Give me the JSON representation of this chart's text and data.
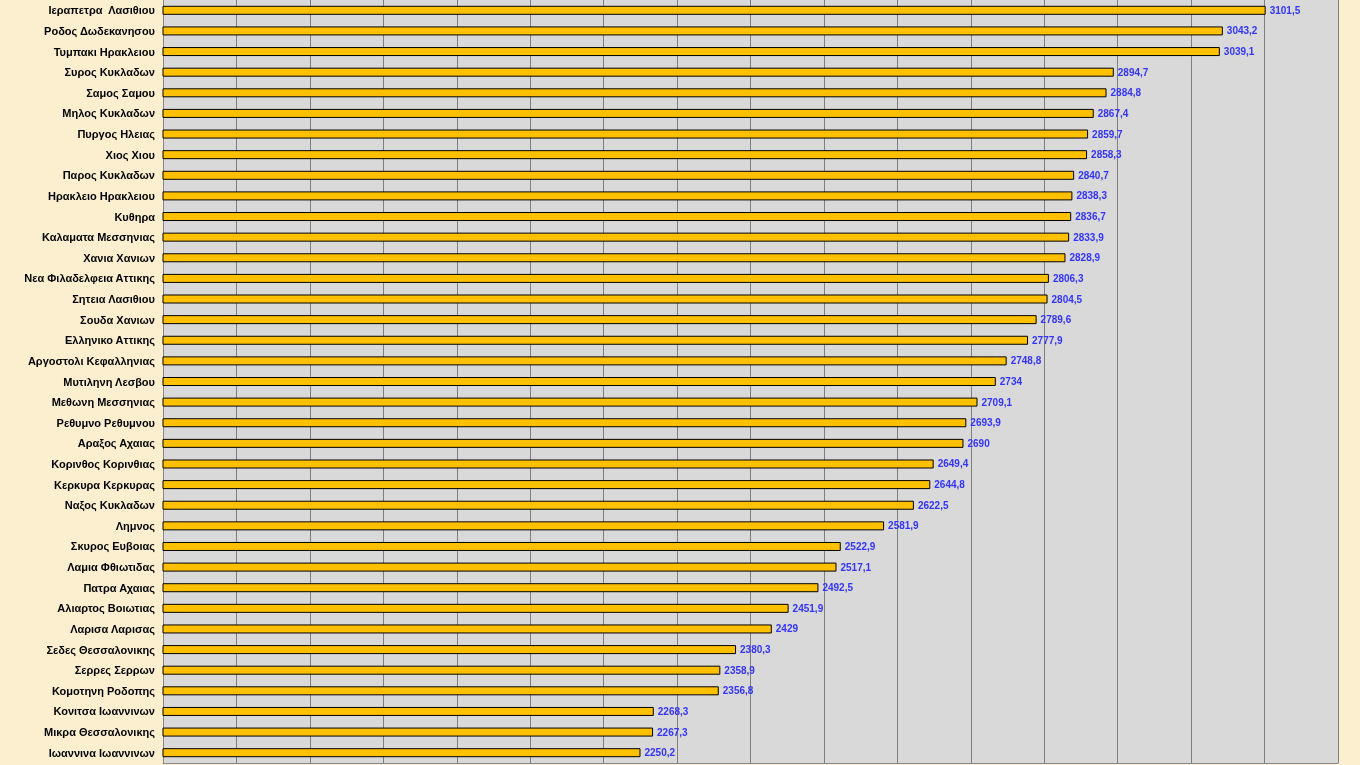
{
  "chart_data": {
    "type": "bar",
    "orientation": "horizontal",
    "categories": [
      "Ιεραπετρα  Λασιθιου",
      "Ροδος Δωδεκανησου",
      "Τυμπακι Ηρακλειου",
      "Συρος Κυκλαδων",
      "Σαμος Σαμου",
      "Μηλος Κυκλαδων",
      "Πυργος Ηλειας",
      "Χιος Χιου",
      "Παρος Κυκλαδων",
      "Ηρακλειο Ηρακλειου",
      "Κυθηρα",
      "Καλαματα Μεσσηνιας",
      "Χανια Χανιων",
      "Νεα Φιλαδελφεια Αττικης",
      "Σητεια Λασιθιου",
      "Σουδα Χανιων",
      "Ελληνικο Αττικης",
      "Αργοστολι Κεφαλληνιας",
      "Μυτιληνη Λεσβου",
      "Μεθωνη Μεσσηνιας",
      "Ρεθυμνο Ρεθυμνου",
      "Αραξος Αχαιας",
      "Κορινθος Κορινθιας",
      "Κερκυρα Κερκυρας",
      "Ναξος Κυκλαδων",
      "Λημνος",
      "Σκυρος Ευβοιας",
      "Λαμια Φθιωτιδας",
      "Πατρα Αχαιας",
      "Αλιαρτος Βοιωτιας",
      "Λαρισα Λαρισας",
      "Σεδες Θεσσαλονικης",
      "Σερρες Σερρων",
      "Κομοτηνη Ροδοπης",
      "Κονιτσα Ιωαννινων",
      "Μικρα Θεσσαλονικης",
      "Ιωαννινα Ιωαννινων"
    ],
    "values": [
      3101.5,
      3043.2,
      3039.1,
      2894.7,
      2884.8,
      2867.4,
      2859.7,
      2858.3,
      2840.7,
      2838.3,
      2836.7,
      2833.9,
      2828.9,
      2806.3,
      2804.5,
      2789.6,
      2777.9,
      2748.8,
      2734,
      2709.1,
      2693.9,
      2690,
      2649.4,
      2644.8,
      2622.5,
      2581.9,
      2522.9,
      2517.1,
      2492.5,
      2451.9,
      2429,
      2380.3,
      2358.9,
      2356.8,
      2268.3,
      2267.3,
      2250.2
    ],
    "value_labels": [
      "3101,5",
      "3043,2",
      "3039,1",
      "2894,7",
      "2884,8",
      "2867,4",
      "2859,7",
      "2858,3",
      "2840,7",
      "2838,3",
      "2836,7",
      "2833,9",
      "2828,9",
      "2806,3",
      "2804,5",
      "2789,6",
      "2777,9",
      "2748,8",
      "2734",
      "2709,1",
      "2693,9",
      "2690",
      "2649,4",
      "2644,8",
      "2622,5",
      "2581,9",
      "2522,9",
      "2517,1",
      "2492,5",
      "2451,9",
      "2429",
      "2380,3",
      "2358,9",
      "2356,8",
      "2268,3",
      "2267,3",
      "2250,2"
    ],
    "color": "#ffc000",
    "xlim": [
      1600,
      3200
    ],
    "xticks": [
      {
        "value": 1600,
        "label": null
      },
      {
        "value": 1700,
        "label": null
      },
      {
        "value": 1800,
        "label": null
      },
      {
        "value": 1900,
        "label": null
      },
      {
        "value": 2000,
        "label": null
      },
      {
        "value": 2100,
        "label": null
      },
      {
        "value": 2200,
        "label": null
      },
      {
        "value": 2300,
        "label": null
      },
      {
        "value": 2400,
        "label": null
      },
      {
        "value": 2500,
        "label": null
      },
      {
        "value": 2600,
        "label": null
      },
      {
        "value": 2700,
        "label": null
      },
      {
        "value": 2800,
        "label": null
      },
      {
        "value": 2900,
        "label": null
      },
      {
        "value": 3000,
        "label": null
      },
      {
        "value": 3100,
        "label": null
      },
      {
        "value": 3200,
        "label": null
      }
    ],
    "tick_labels": "y",
    "grid": "x"
  }
}
